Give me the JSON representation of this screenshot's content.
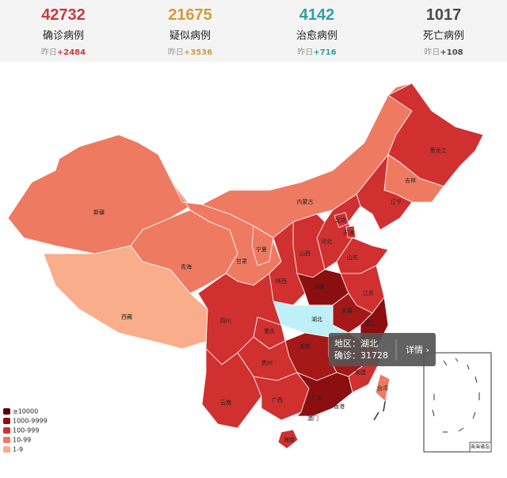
{
  "stats": [
    {
      "value": 42732,
      "label": "确诊病例",
      "prev_label": "昨日",
      "delta": "+2484",
      "color": "#c9393d"
    },
    {
      "value": 21675,
      "label": "疑似病例",
      "prev_label": "昨日",
      "delta": "+3536",
      "color": "#d39b32"
    },
    {
      "value": 4142,
      "label": "治愈病例",
      "prev_label": "昨日",
      "delta": "+716",
      "color": "#2fa0a0"
    },
    {
      "value": 1017,
      "label": "死亡病例",
      "prev_label": "昨日",
      "delta": "+108",
      "color": "#4a4a4a"
    }
  ],
  "provinces": [
    {
      "name": "新疆",
      "color": "#ee7a62"
    },
    {
      "name": "西藏",
      "color": "#f9ad8a"
    },
    {
      "name": "青海",
      "color": "#ee7a62"
    },
    {
      "name": "甘肃",
      "color": "#ee7a62"
    },
    {
      "name": "内蒙古",
      "color": "#ee7a62"
    },
    {
      "name": "黑龙江",
      "color": "#d03030"
    },
    {
      "name": "吉林",
      "color": "#ee7a62"
    },
    {
      "name": "辽宁",
      "color": "#d03030"
    },
    {
      "name": "河北",
      "color": "#d03030"
    },
    {
      "name": "北京",
      "color": "#d03030"
    },
    {
      "name": "天津",
      "color": "#d03030"
    },
    {
      "name": "山西",
      "color": "#d03030"
    },
    {
      "name": "山东",
      "color": "#d03030"
    },
    {
      "name": "宁夏",
      "color": "#ee7a62"
    },
    {
      "name": "陕西",
      "color": "#d03030"
    },
    {
      "name": "河南",
      "color": "#8b0f10"
    },
    {
      "name": "江苏",
      "color": "#d03030"
    },
    {
      "name": "安徽",
      "color": "#a51818"
    },
    {
      "name": "湖北",
      "color": "#bff0f8"
    },
    {
      "name": "重庆",
      "color": "#d03030"
    },
    {
      "name": "四川",
      "color": "#d03030"
    },
    {
      "name": "浙江",
      "color": "#8b0f10"
    },
    {
      "name": "江西",
      "color": "#a51818"
    },
    {
      "name": "湖南",
      "color": "#a51818"
    },
    {
      "name": "贵州",
      "color": "#d03030"
    },
    {
      "name": "福建",
      "color": "#d03030"
    },
    {
      "name": "云南",
      "color": "#d03030"
    },
    {
      "name": "广西",
      "color": "#d03030"
    },
    {
      "name": "广东",
      "color": "#8b0f10"
    },
    {
      "name": "台湾",
      "color": "#ee7a62"
    },
    {
      "name": "海南",
      "color": "#d03030"
    },
    {
      "name": "香港",
      "color": "#d03030"
    },
    {
      "name": "澳门",
      "color": "#ee7a62"
    }
  ],
  "legend": [
    {
      "label": "≥10000",
      "color": "#5a0000"
    },
    {
      "label": "1000-9999",
      "color": "#8b0f10"
    },
    {
      "label": "100-999",
      "color": "#d03030"
    },
    {
      "label": "10-99",
      "color": "#ee7a62"
    },
    {
      "label": "1-9",
      "color": "#f9ad8a"
    }
  ],
  "tooltip": {
    "line1": "地区：湖北",
    "line2": "确诊：31728",
    "action": "详情 ›"
  },
  "inset_label": "南海诸岛"
}
